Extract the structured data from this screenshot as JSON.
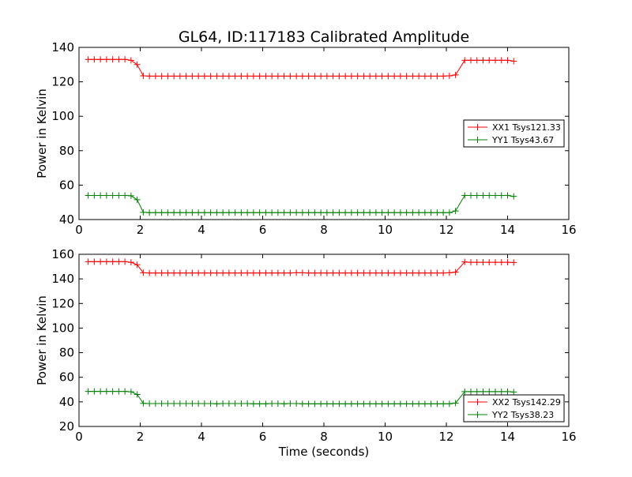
{
  "chart_data": [
    {
      "type": "line",
      "title": "GL64, ID:117183 Calibrated Amplitude",
      "xlabel": "",
      "ylabel": "Power in Kelvin",
      "xlim": [
        0,
        16
      ],
      "ylim": [
        40,
        140
      ],
      "xticks": [
        "0",
        "2",
        "4",
        "6",
        "8",
        "10",
        "12",
        "14",
        "16"
      ],
      "yticks": [
        "40",
        "60",
        "80",
        "100",
        "120",
        "140"
      ],
      "legend_position": "center-right",
      "series": [
        {
          "name": "XX1 Tsys121.33",
          "color": "#ff0000",
          "x": [
            0.3,
            0.5,
            0.7,
            0.9,
            1.1,
            1.3,
            1.5,
            1.7,
            1.9,
            2.1,
            2.3,
            2.5,
            2.7,
            2.9,
            3.1,
            3.3,
            3.5,
            3.7,
            3.9,
            4.1,
            4.3,
            4.5,
            4.7,
            4.9,
            5.1,
            5.3,
            5.5,
            5.7,
            5.9,
            6.1,
            6.3,
            6.5,
            6.7,
            6.9,
            7.1,
            7.3,
            7.5,
            7.7,
            7.9,
            8.1,
            8.3,
            8.5,
            8.7,
            8.9,
            9.1,
            9.3,
            9.5,
            9.7,
            9.9,
            10.1,
            10.3,
            10.5,
            10.7,
            10.9,
            11.1,
            11.3,
            11.5,
            11.7,
            11.9,
            12.1,
            12.3,
            12.6,
            12.8,
            13.0,
            13.2,
            13.4,
            13.6,
            13.8,
            14.0,
            14.2
          ],
          "y": [
            133,
            133,
            133,
            133,
            133,
            133,
            133,
            132.5,
            130,
            123.5,
            123.3,
            123.3,
            123.3,
            123.3,
            123.3,
            123.3,
            123.3,
            123.3,
            123.3,
            123.3,
            123.3,
            123.3,
            123.3,
            123.3,
            123.3,
            123.3,
            123.3,
            123.3,
            123.3,
            123.3,
            123.3,
            123.3,
            123.3,
            123.3,
            123.3,
            123.3,
            123.3,
            123.3,
            123.3,
            123.3,
            123.3,
            123.3,
            123.3,
            123.3,
            123.3,
            123.3,
            123.3,
            123.3,
            123.3,
            123.3,
            123.3,
            123.3,
            123.3,
            123.3,
            123.3,
            123.3,
            123.3,
            123.3,
            123.3,
            123.5,
            124,
            132.5,
            132.5,
            132.5,
            132.5,
            132.5,
            132.5,
            132.5,
            132.5,
            132
          ]
        },
        {
          "name": "YY1 Tsys43.67",
          "color": "#008000",
          "x": [
            0.3,
            0.5,
            0.7,
            0.9,
            1.1,
            1.3,
            1.5,
            1.7,
            1.9,
            2.1,
            2.3,
            2.5,
            2.7,
            2.9,
            3.1,
            3.3,
            3.5,
            3.7,
            3.9,
            4.1,
            4.3,
            4.5,
            4.7,
            4.9,
            5.1,
            5.3,
            5.5,
            5.7,
            5.9,
            6.1,
            6.3,
            6.5,
            6.7,
            6.9,
            7.1,
            7.3,
            7.5,
            7.7,
            7.9,
            8.1,
            8.3,
            8.5,
            8.7,
            8.9,
            9.1,
            9.3,
            9.5,
            9.7,
            9.9,
            10.1,
            10.3,
            10.5,
            10.7,
            10.9,
            11.1,
            11.3,
            11.5,
            11.7,
            11.9,
            12.1,
            12.3,
            12.6,
            12.8,
            13.0,
            13.2,
            13.4,
            13.6,
            13.8,
            14.0,
            14.2
          ],
          "y": [
            54,
            54,
            54,
            54,
            54,
            54,
            54,
            53.8,
            51.5,
            44.2,
            44,
            44,
            44,
            44,
            44,
            44,
            44,
            44,
            44,
            44,
            44,
            44,
            44,
            44,
            44,
            44,
            44,
            44,
            44,
            44,
            44,
            44,
            44,
            44,
            44,
            44,
            44,
            44,
            44,
            44,
            44,
            44,
            44,
            44,
            44,
            44,
            44,
            44,
            44,
            44,
            44,
            44,
            44,
            44,
            44,
            44,
            44,
            44,
            44,
            44,
            45,
            54,
            54,
            54,
            54,
            54,
            54,
            54,
            54,
            53.5
          ]
        }
      ]
    },
    {
      "type": "line",
      "title": "",
      "xlabel": "Time (seconds)",
      "ylabel": "Power in Kelvin",
      "xlim": [
        0,
        16
      ],
      "ylim": [
        20,
        160
      ],
      "xticks": [
        "0",
        "2",
        "4",
        "6",
        "8",
        "10",
        "12",
        "14",
        "16"
      ],
      "yticks": [
        "20",
        "40",
        "60",
        "80",
        "100",
        "120",
        "140",
        "160"
      ],
      "legend_position": "lower-right",
      "series": [
        {
          "name": "XX2 Tsys142.29",
          "color": "#ff0000",
          "x": [
            0.3,
            0.5,
            0.7,
            0.9,
            1.1,
            1.3,
            1.5,
            1.7,
            1.9,
            2.1,
            2.3,
            2.5,
            2.7,
            2.9,
            3.1,
            3.3,
            3.5,
            3.7,
            3.9,
            4.1,
            4.3,
            4.5,
            4.7,
            4.9,
            5.1,
            5.3,
            5.5,
            5.7,
            5.9,
            6.1,
            6.3,
            6.5,
            6.7,
            6.9,
            7.1,
            7.3,
            7.5,
            7.7,
            7.9,
            8.1,
            8.3,
            8.5,
            8.7,
            8.9,
            9.1,
            9.3,
            9.5,
            9.7,
            9.9,
            10.1,
            10.3,
            10.5,
            10.7,
            10.9,
            11.1,
            11.3,
            11.5,
            11.7,
            11.9,
            12.1,
            12.3,
            12.6,
            12.8,
            13.0,
            13.2,
            13.4,
            13.6,
            13.8,
            14.0,
            14.2
          ],
          "y": [
            154,
            154,
            154,
            154,
            154,
            154,
            154,
            153.5,
            151.5,
            145,
            144.8,
            144.8,
            144.8,
            144.8,
            144.8,
            144.8,
            144.8,
            144.8,
            144.8,
            144.8,
            144.8,
            144.8,
            144.8,
            144.8,
            144.8,
            144.8,
            144.8,
            144.8,
            144.8,
            144.8,
            144.8,
            144.8,
            144.8,
            144.8,
            145,
            145,
            144.8,
            144.8,
            144.8,
            144.8,
            144.8,
            144.8,
            144.8,
            144.8,
            144.8,
            144.8,
            144.8,
            144.8,
            144.8,
            144.8,
            144.8,
            144.8,
            144.8,
            144.8,
            144.8,
            144.8,
            144.8,
            144.8,
            144.8,
            145,
            145.5,
            153.8,
            153.5,
            153.5,
            153.5,
            153.5,
            153.5,
            153.5,
            153.5,
            153.3
          ]
        },
        {
          "name": "YY2 Tsys38.23",
          "color": "#008000",
          "x": [
            0.3,
            0.5,
            0.7,
            0.9,
            1.1,
            1.3,
            1.5,
            1.7,
            1.9,
            2.1,
            2.3,
            2.5,
            2.7,
            2.9,
            3.1,
            3.3,
            3.5,
            3.7,
            3.9,
            4.1,
            4.3,
            4.5,
            4.7,
            4.9,
            5.1,
            5.3,
            5.5,
            5.7,
            5.9,
            6.1,
            6.3,
            6.5,
            6.7,
            6.9,
            7.1,
            7.3,
            7.5,
            7.7,
            7.9,
            8.1,
            8.3,
            8.5,
            8.7,
            8.9,
            9.1,
            9.3,
            9.5,
            9.7,
            9.9,
            10.1,
            10.3,
            10.5,
            10.7,
            10.9,
            11.1,
            11.3,
            11.5,
            11.7,
            11.9,
            12.1,
            12.3,
            12.6,
            12.8,
            13.0,
            13.2,
            13.4,
            13.6,
            13.8,
            14.0,
            14.2
          ],
          "y": [
            48.5,
            48.5,
            48.5,
            48.5,
            48.5,
            48.5,
            48.5,
            48.2,
            46,
            38.8,
            38.6,
            38.6,
            38.6,
            38.6,
            38.6,
            38.6,
            38.6,
            38.6,
            38.6,
            38.6,
            38.6,
            38.4,
            38.6,
            38.6,
            38.6,
            38.6,
            38.6,
            38.4,
            38.4,
            38.4,
            38.6,
            38.6,
            38.4,
            38.6,
            38.6,
            38.4,
            38.4,
            38.4,
            38.4,
            38.4,
            38.4,
            38.4,
            38.4,
            38.4,
            38.4,
            38.4,
            38.4,
            38.4,
            38.4,
            38.4,
            38.4,
            38.4,
            38.4,
            38.4,
            38.4,
            38.4,
            38.4,
            38.4,
            38.4,
            38.4,
            39,
            48.3,
            48.3,
            48.3,
            48.3,
            48.3,
            48.3,
            48.3,
            48.3,
            48
          ]
        }
      ]
    }
  ]
}
